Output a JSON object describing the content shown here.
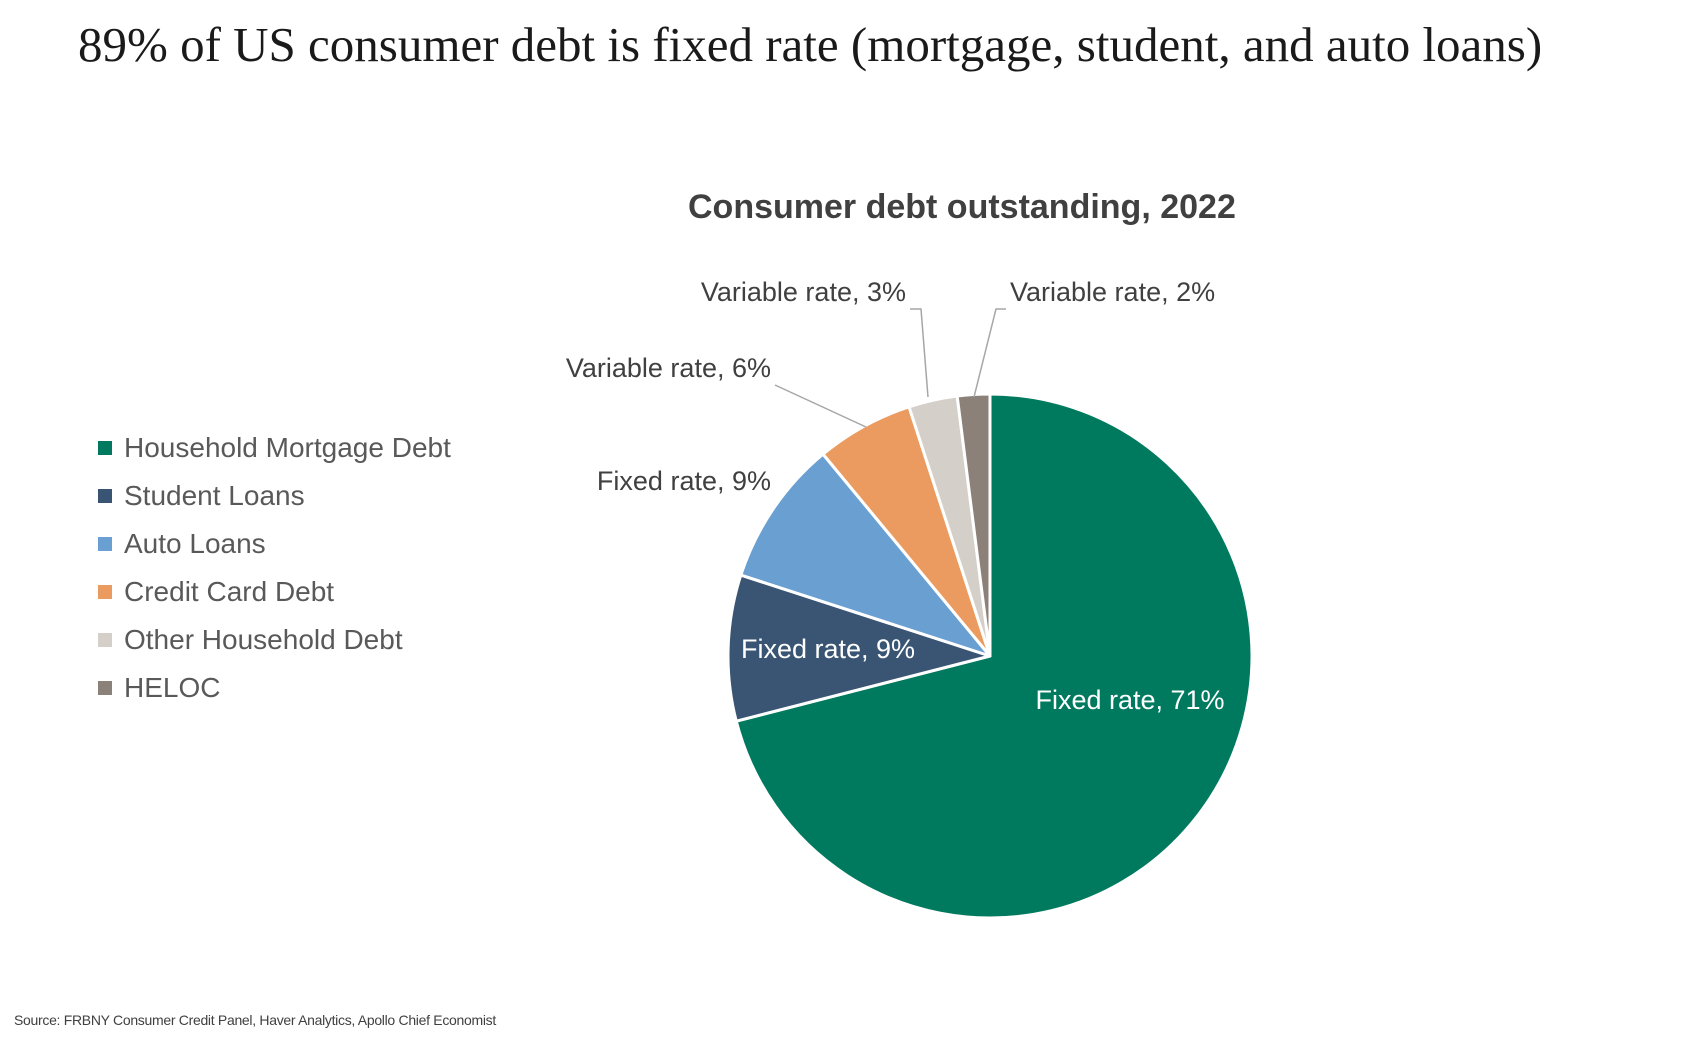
{
  "headline": "89% of US consumer debt is fixed rate (mortgage, student, and auto loans)",
  "source": "Source: FRBNY Consumer Credit Panel, Haver Analytics, Apollo Chief Economist",
  "chart_data": {
    "type": "pie",
    "title": "Consumer debt outstanding, 2022",
    "legend_position": "left",
    "legend": [
      {
        "name": "Household Mortgage Debt",
        "color": "#007A5E"
      },
      {
        "name": "Student Loans",
        "color": "#3A5573"
      },
      {
        "name": "Auto Loans",
        "color": "#6A9FD2"
      },
      {
        "name": "Credit Card Debt",
        "color": "#EB9B5F"
      },
      {
        "name": "Other Household Debt",
        "color": "#D5CFC9"
      },
      {
        "name": "HELOC",
        "color": "#8C8179"
      }
    ],
    "slices": [
      {
        "category": "Household Mortgage Debt",
        "value": 71,
        "label": "Fixed rate, 71%",
        "color": "#007A5E"
      },
      {
        "category": "Student Loans",
        "value": 9,
        "label": "Fixed rate, 9%",
        "color": "#3A5573"
      },
      {
        "category": "Auto Loans",
        "value": 9,
        "label": "Fixed rate, 9%",
        "color": "#6A9FD2"
      },
      {
        "category": "Credit Card Debt",
        "value": 6,
        "label": "Variable rate, 6%",
        "color": "#EB9B5F"
      },
      {
        "category": "Other Household Debt",
        "value": 3,
        "label": "Variable rate, 3%",
        "color": "#D5CFC9"
      },
      {
        "category": "HELOC",
        "value": 2,
        "label": "Variable rate, 2%",
        "color": "#8C8179"
      }
    ]
  }
}
